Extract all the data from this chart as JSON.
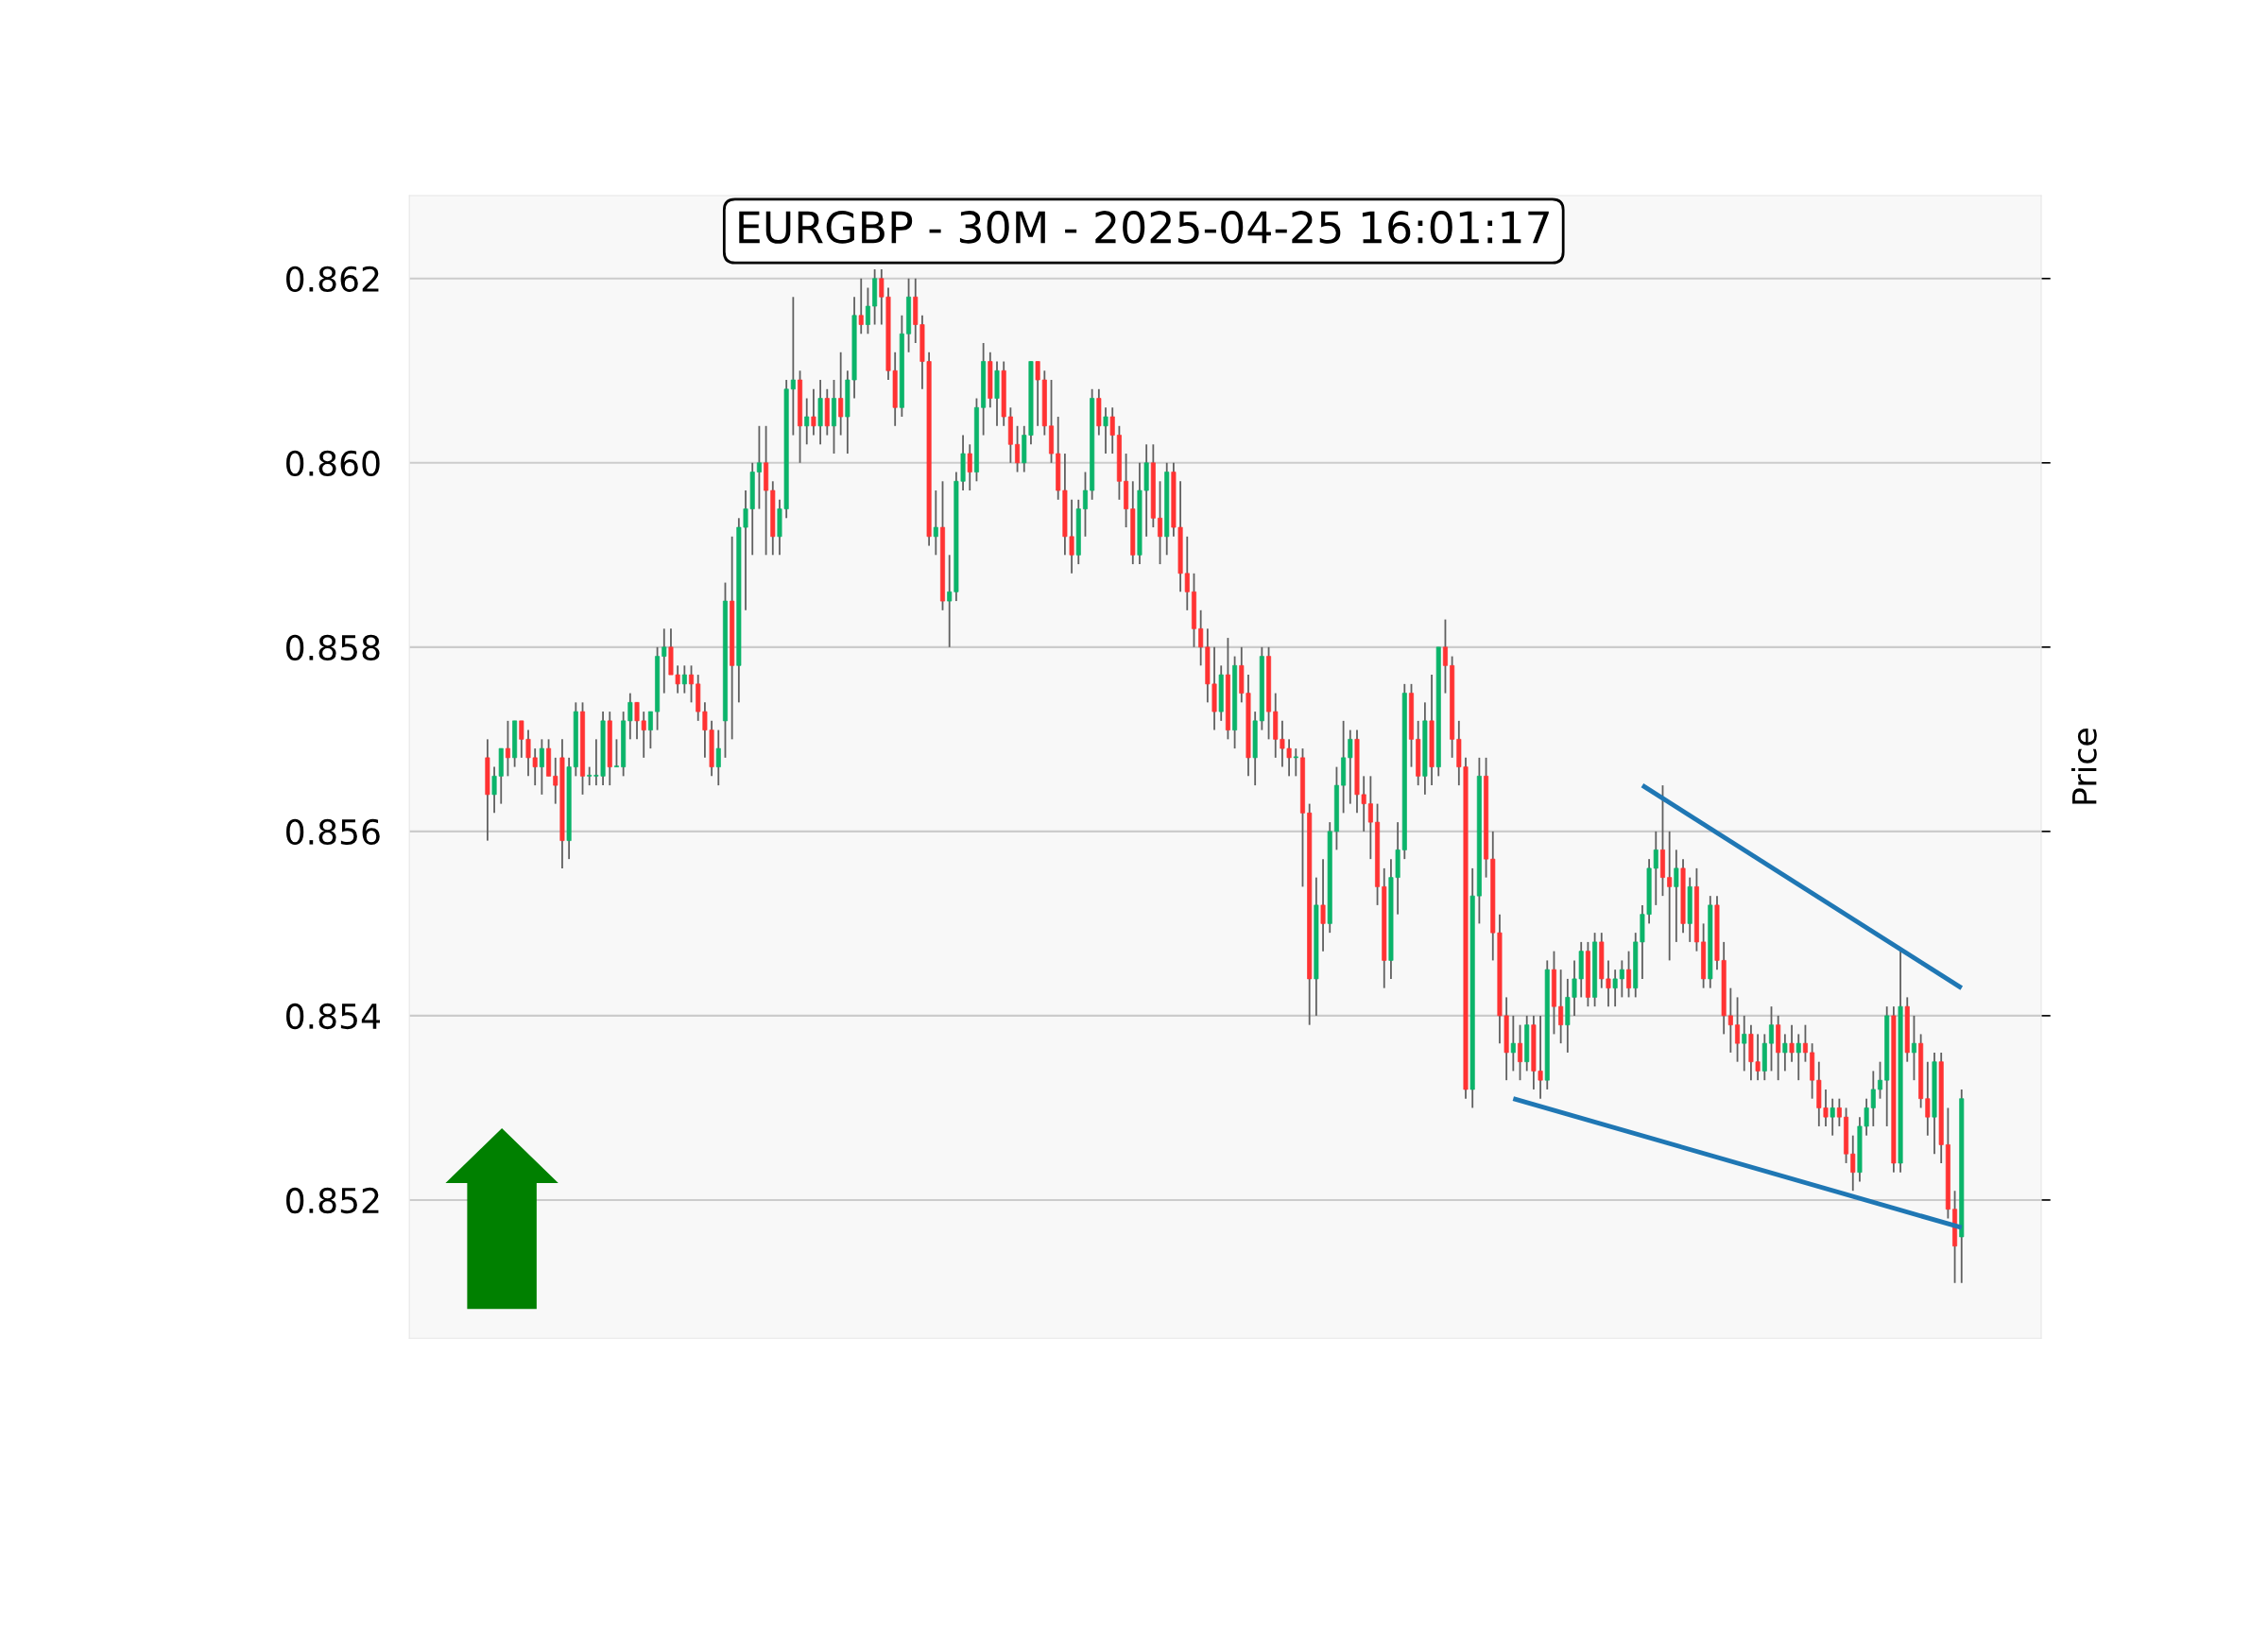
{
  "chart_data": {
    "type": "candlestick",
    "title": "EURGBP - 30M - 2025-04-25 16:01:17",
    "ylabel": "Price",
    "categories": [
      null,
      null,
      null,
      null,
      null,
      null,
      null,
      null,
      null,
      null,
      null,
      null,
      null,
      null,
      null,
      null,
      null,
      null,
      null,
      null,
      null,
      null,
      null,
      null,
      null,
      null,
      null,
      null,
      null,
      null,
      null,
      null,
      null,
      null,
      null,
      null,
      null,
      null,
      null,
      null,
      null,
      null,
      null,
      null,
      null,
      null,
      null,
      null,
      null,
      null,
      null,
      null,
      null,
      null,
      null,
      null,
      null,
      null,
      null,
      null,
      null,
      null,
      null,
      null,
      null,
      null,
      null,
      null,
      null,
      null,
      null,
      null,
      null,
      null,
      null,
      null,
      null,
      null,
      null,
      null,
      null,
      null,
      null,
      null,
      null,
      null,
      null,
      null,
      null,
      null,
      null,
      null,
      null,
      null,
      null,
      null,
      null,
      null,
      null,
      null,
      null,
      null,
      null,
      null,
      null,
      null,
      null,
      null,
      null,
      null,
      null,
      null,
      null,
      null,
      null,
      null,
      null,
      null,
      null,
      null,
      null,
      null,
      null,
      null,
      null,
      null,
      null,
      null,
      null,
      null,
      null,
      null,
      null,
      null,
      null,
      null,
      null,
      null,
      null,
      null,
      null,
      null,
      null,
      null,
      null,
      null,
      null,
      null,
      null,
      null,
      null,
      null,
      null,
      null,
      null,
      null,
      null,
      null,
      null,
      null,
      null,
      null,
      null,
      null,
      null,
      null,
      null,
      null,
      null,
      null,
      null,
      null,
      null,
      null,
      null,
      null,
      null,
      null,
      null,
      null,
      null,
      null,
      null,
      null,
      null,
      null,
      null,
      null,
      null,
      null,
      null,
      null,
      null,
      null,
      null,
      null,
      null,
      null,
      null,
      null,
      null,
      null,
      null,
      null,
      null,
      null,
      null,
      null,
      null,
      null,
      null,
      null,
      null,
      null,
      null,
      null,
      null,
      null
    ],
    "ohlc": [
      [
        0.8568,
        0.857,
        0.8559,
        0.8564
      ],
      [
        0.8564,
        0.8567,
        0.8562,
        0.8566
      ],
      [
        0.8566,
        0.8569,
        0.8563,
        0.8569
      ],
      [
        0.8569,
        0.8572,
        0.8566,
        0.8568
      ],
      [
        0.8568,
        0.8572,
        0.8567,
        0.8572
      ],
      [
        0.8572,
        0.8572,
        0.8568,
        0.857
      ],
      [
        0.857,
        0.8571,
        0.8566,
        0.8568
      ],
      [
        0.8568,
        0.8569,
        0.8565,
        0.8567
      ],
      [
        0.8567,
        0.857,
        0.8564,
        0.8569
      ],
      [
        0.8569,
        0.857,
        0.8566,
        0.8566
      ],
      [
        0.8566,
        0.8568,
        0.8563,
        0.8565
      ],
      [
        0.8568,
        0.857,
        0.8556,
        0.8559
      ],
      [
        0.8559,
        0.8568,
        0.8557,
        0.8567
      ],
      [
        0.8567,
        0.8574,
        0.8566,
        0.8573
      ],
      [
        0.8573,
        0.8574,
        0.8564,
        0.8566
      ],
      [
        0.8566,
        0.8567,
        0.8565,
        0.8566
      ],
      [
        0.8566,
        0.857,
        0.8565,
        0.8566
      ],
      [
        0.8566,
        0.8573,
        0.8565,
        0.8572
      ],
      [
        0.8572,
        0.8573,
        0.8565,
        0.8567
      ],
      [
        0.8567,
        0.857,
        0.8567,
        0.8567
      ],
      [
        0.8567,
        0.8573,
        0.8566,
        0.8572
      ],
      [
        0.8572,
        0.8575,
        0.857,
        0.8574
      ],
      [
        0.8574,
        0.8574,
        0.857,
        0.8572
      ],
      [
        0.8572,
        0.8573,
        0.8568,
        0.8571
      ],
      [
        0.8571,
        0.8573,
        0.8569,
        0.8573
      ],
      [
        0.8573,
        0.858,
        0.8571,
        0.8579
      ],
      [
        0.8579,
        0.8582,
        0.8575,
        0.858
      ],
      [
        0.858,
        0.8582,
        0.8577,
        0.8577
      ],
      [
        0.8577,
        0.8578,
        0.8575,
        0.8576
      ],
      [
        0.8576,
        0.8578,
        0.8575,
        0.8577
      ],
      [
        0.8577,
        0.8578,
        0.8574,
        0.8576
      ],
      [
        0.8576,
        0.8577,
        0.8572,
        0.8573
      ],
      [
        0.8573,
        0.8574,
        0.8568,
        0.8571
      ],
      [
        0.8571,
        0.8572,
        0.8566,
        0.8567
      ],
      [
        0.8567,
        0.8571,
        0.8565,
        0.8569
      ],
      [
        0.8572,
        0.8587,
        0.8568,
        0.8585
      ],
      [
        0.8585,
        0.8592,
        0.857,
        0.8578
      ],
      [
        0.8578,
        0.8594,
        0.8574,
        0.8593
      ],
      [
        0.8593,
        0.8597,
        0.8584,
        0.8595
      ],
      [
        0.8595,
        0.86,
        0.859,
        0.8599
      ],
      [
        0.8599,
        0.8604,
        0.8595,
        0.86
      ],
      [
        0.86,
        0.8604,
        0.859,
        0.8597
      ],
      [
        0.8597,
        0.8598,
        0.859,
        0.8592
      ],
      [
        0.8592,
        0.8596,
        0.859,
        0.8595
      ],
      [
        0.8595,
        0.8609,
        0.8594,
        0.8608
      ],
      [
        0.8608,
        0.8618,
        0.8603,
        0.8609
      ],
      [
        0.8609,
        0.861,
        0.86,
        0.8604
      ],
      [
        0.8604,
        0.8607,
        0.8602,
        0.8605
      ],
      [
        0.8605,
        0.8608,
        0.8603,
        0.8604
      ],
      [
        0.8604,
        0.8609,
        0.8602,
        0.8607
      ],
      [
        0.8607,
        0.8608,
        0.8603,
        0.8604
      ],
      [
        0.8604,
        0.8609,
        0.8601,
        0.8607
      ],
      [
        0.8607,
        0.8612,
        0.8603,
        0.8605
      ],
      [
        0.8605,
        0.861,
        0.8601,
        0.8609
      ],
      [
        0.8609,
        0.8618,
        0.8607,
        0.8616
      ],
      [
        0.8616,
        0.862,
        0.8614,
        0.8615
      ],
      [
        0.8615,
        0.8619,
        0.8614,
        0.8617
      ],
      [
        0.8617,
        0.8621,
        0.8615,
        0.862
      ],
      [
        0.862,
        0.8621,
        0.8615,
        0.8618
      ],
      [
        0.8618,
        0.8619,
        0.8609,
        0.861
      ],
      [
        0.861,
        0.8612,
        0.8604,
        0.8606
      ],
      [
        0.8606,
        0.8616,
        0.8605,
        0.8614
      ],
      [
        0.8614,
        0.862,
        0.8612,
        0.8618
      ],
      [
        0.8618,
        0.862,
        0.8613,
        0.8615
      ],
      [
        0.8615,
        0.8616,
        0.8608,
        0.8611
      ],
      [
        0.8611,
        0.8612,
        0.8591,
        0.8592
      ],
      [
        0.8592,
        0.8597,
        0.859,
        0.8593
      ],
      [
        0.8593,
        0.8598,
        0.8584,
        0.8585
      ],
      [
        0.8585,
        0.859,
        0.858,
        0.8586
      ],
      [
        0.8586,
        0.8599,
        0.8585,
        0.8598
      ],
      [
        0.8598,
        0.8603,
        0.8597,
        0.8601
      ],
      [
        0.8601,
        0.8602,
        0.8597,
        0.8599
      ],
      [
        0.8599,
        0.8607,
        0.8598,
        0.8606
      ],
      [
        0.8606,
        0.8613,
        0.8603,
        0.8611
      ],
      [
        0.8611,
        0.8612,
        0.8606,
        0.8607
      ],
      [
        0.8607,
        0.8611,
        0.8604,
        0.861
      ],
      [
        0.861,
        0.8611,
        0.8604,
        0.8605
      ],
      [
        0.8605,
        0.8606,
        0.86,
        0.8602
      ],
      [
        0.8602,
        0.8604,
        0.8599,
        0.86
      ],
      [
        0.86,
        0.8604,
        0.8599,
        0.8603
      ],
      [
        0.8603,
        0.8611,
        0.8602,
        0.8611
      ],
      [
        0.8611,
        0.8611,
        0.8604,
        0.8609
      ],
      [
        0.8609,
        0.861,
        0.8603,
        0.8604
      ],
      [
        0.8604,
        0.8609,
        0.86,
        0.8601
      ],
      [
        0.8601,
        0.8605,
        0.8596,
        0.8597
      ],
      [
        0.8597,
        0.8601,
        0.859,
        0.8592
      ],
      [
        0.8592,
        0.8596,
        0.8588,
        0.859
      ],
      [
        0.859,
        0.8596,
        0.8589,
        0.8595
      ],
      [
        0.8595,
        0.8599,
        0.8592,
        0.8597
      ],
      [
        0.8597,
        0.8608,
        0.8596,
        0.8607
      ],
      [
        0.8607,
        0.8608,
        0.8603,
        0.8604
      ],
      [
        0.8604,
        0.8606,
        0.8601,
        0.8605
      ],
      [
        0.8605,
        0.8606,
        0.8601,
        0.8603
      ],
      [
        0.8603,
        0.8604,
        0.8596,
        0.8598
      ],
      [
        0.8598,
        0.8601,
        0.8593,
        0.8595
      ],
      [
        0.8595,
        0.8598,
        0.8589,
        0.859
      ],
      [
        0.859,
        0.86,
        0.8589,
        0.8597
      ],
      [
        0.8597,
        0.8602,
        0.8592,
        0.86
      ],
      [
        0.86,
        0.8602,
        0.8593,
        0.8594
      ],
      [
        0.8594,
        0.8598,
        0.8589,
        0.8592
      ],
      [
        0.8592,
        0.86,
        0.859,
        0.8599
      ],
      [
        0.8599,
        0.86,
        0.8592,
        0.8593
      ],
      [
        0.8593,
        0.8598,
        0.8586,
        0.8588
      ],
      [
        0.8588,
        0.8592,
        0.8584,
        0.8586
      ],
      [
        0.8586,
        0.8588,
        0.858,
        0.8582
      ],
      [
        0.8582,
        0.8584,
        0.8578,
        0.858
      ],
      [
        0.858,
        0.8582,
        0.8574,
        0.8576
      ],
      [
        0.8576,
        0.858,
        0.8571,
        0.8573
      ],
      [
        0.8573,
        0.8578,
        0.8572,
        0.8577
      ],
      [
        0.8577,
        0.8581,
        0.857,
        0.8571
      ],
      [
        0.8571,
        0.8579,
        0.8569,
        0.8578
      ],
      [
        0.8578,
        0.858,
        0.8574,
        0.8575
      ],
      [
        0.8575,
        0.8577,
        0.8566,
        0.8568
      ],
      [
        0.8568,
        0.8573,
        0.8565,
        0.8572
      ],
      [
        0.8572,
        0.858,
        0.8571,
        0.8579
      ],
      [
        0.8579,
        0.858,
        0.857,
        0.8573
      ],
      [
        0.8573,
        0.8575,
        0.8568,
        0.857
      ],
      [
        0.857,
        0.8572,
        0.8567,
        0.8569
      ],
      [
        0.8569,
        0.857,
        0.8566,
        0.8568
      ],
      [
        0.8568,
        0.8569,
        0.8566,
        0.8568
      ],
      [
        0.8568,
        0.8569,
        0.8554,
        0.8562
      ],
      [
        0.8562,
        0.8563,
        0.8539,
        0.8544
      ],
      [
        0.8544,
        0.8555,
        0.854,
        0.8552
      ],
      [
        0.8552,
        0.8557,
        0.8547,
        0.855
      ],
      [
        0.855,
        0.8561,
        0.8549,
        0.856
      ],
      [
        0.856,
        0.8567,
        0.8558,
        0.8565
      ],
      [
        0.8565,
        0.8572,
        0.8562,
        0.8568
      ],
      [
        0.8568,
        0.8571,
        0.8563,
        0.857
      ],
      [
        0.857,
        0.8571,
        0.8562,
        0.8564
      ],
      [
        0.8564,
        0.8566,
        0.856,
        0.8563
      ],
      [
        0.8563,
        0.8566,
        0.8557,
        0.8561
      ],
      [
        0.8561,
        0.8563,
        0.8552,
        0.8554
      ],
      [
        0.8554,
        0.8556,
        0.8543,
        0.8546
      ],
      [
        0.8546,
        0.8557,
        0.8544,
        0.8555
      ],
      [
        0.8555,
        0.8561,
        0.8551,
        0.8558
      ],
      [
        0.8558,
        0.8576,
        0.8557,
        0.8575
      ],
      [
        0.8575,
        0.8576,
        0.8567,
        0.857
      ],
      [
        0.857,
        0.8572,
        0.8565,
        0.8566
      ],
      [
        0.8566,
        0.8574,
        0.8564,
        0.8572
      ],
      [
        0.8572,
        0.8577,
        0.8565,
        0.8567
      ],
      [
        0.8567,
        0.858,
        0.8566,
        0.858
      ],
      [
        0.858,
        0.8583,
        0.8575,
        0.8578
      ],
      [
        0.8578,
        0.8579,
        0.8568,
        0.857
      ],
      [
        0.857,
        0.8572,
        0.8565,
        0.8567
      ],
      [
        0.8567,
        0.8568,
        0.8531,
        0.8532
      ],
      [
        0.8532,
        0.8556,
        0.853,
        0.8553
      ],
      [
        0.8553,
        0.8568,
        0.855,
        0.8566
      ],
      [
        0.8566,
        0.8568,
        0.8555,
        0.8557
      ],
      [
        0.8557,
        0.856,
        0.8546,
        0.8549
      ],
      [
        0.8549,
        0.8551,
        0.8537,
        0.854
      ],
      [
        0.854,
        0.8542,
        0.8533,
        0.8536
      ],
      [
        0.8536,
        0.854,
        0.8534,
        0.8537
      ],
      [
        0.8537,
        0.8539,
        0.8533,
        0.8535
      ],
      [
        0.8535,
        0.854,
        0.8534,
        0.8539
      ],
      [
        0.8539,
        0.854,
        0.8532,
        0.8534
      ],
      [
        0.8534,
        0.854,
        0.8531,
        0.8533
      ],
      [
        0.8533,
        0.8546,
        0.8532,
        0.8545
      ],
      [
        0.8545,
        0.8547,
        0.8538,
        0.8541
      ],
      [
        0.8541,
        0.8545,
        0.8537,
        0.8539
      ],
      [
        0.8539,
        0.8544,
        0.8536,
        0.8542
      ],
      [
        0.8542,
        0.8546,
        0.854,
        0.8544
      ],
      [
        0.8544,
        0.8548,
        0.8542,
        0.8547
      ],
      [
        0.8547,
        0.8548,
        0.8541,
        0.8542
      ],
      [
        0.8542,
        0.8549,
        0.8541,
        0.8548
      ],
      [
        0.8548,
        0.8549,
        0.8543,
        0.8544
      ],
      [
        0.8544,
        0.8546,
        0.8541,
        0.8543
      ],
      [
        0.8543,
        0.8545,
        0.8541,
        0.8544
      ],
      [
        0.8544,
        0.8546,
        0.8542,
        0.8545
      ],
      [
        0.8545,
        0.8547,
        0.8542,
        0.8543
      ],
      [
        0.8543,
        0.8549,
        0.8542,
        0.8548
      ],
      [
        0.8548,
        0.8552,
        0.8544,
        0.8551
      ],
      [
        0.8551,
        0.8557,
        0.855,
        0.8556
      ],
      [
        0.8556,
        0.856,
        0.8552,
        0.8558
      ],
      [
        0.8558,
        0.8565,
        0.8553,
        0.8555
      ],
      [
        0.8555,
        0.856,
        0.8546,
        0.8554
      ],
      [
        0.8554,
        0.8558,
        0.8548,
        0.8556
      ],
      [
        0.8556,
        0.8557,
        0.8549,
        0.855
      ],
      [
        0.855,
        0.8555,
        0.8548,
        0.8554
      ],
      [
        0.8554,
        0.8556,
        0.8547,
        0.8548
      ],
      [
        0.8548,
        0.855,
        0.8543,
        0.8544
      ],
      [
        0.8544,
        0.8553,
        0.8543,
        0.8552
      ],
      [
        0.8552,
        0.8553,
        0.8545,
        0.8546
      ],
      [
        0.8546,
        0.8548,
        0.8538,
        0.854
      ],
      [
        0.854,
        0.8543,
        0.8536,
        0.8539
      ],
      [
        0.8539,
        0.8542,
        0.8535,
        0.8537
      ],
      [
        0.8537,
        0.854,
        0.8534,
        0.8538
      ],
      [
        0.8538,
        0.8539,
        0.8533,
        0.8535
      ],
      [
        0.8535,
        0.8538,
        0.8533,
        0.8534
      ],
      [
        0.8534,
        0.8538,
        0.8533,
        0.8537
      ],
      [
        0.8537,
        0.8541,
        0.8534,
        0.8539
      ],
      [
        0.8539,
        0.854,
        0.8533,
        0.8536
      ],
      [
        0.8536,
        0.8538,
        0.8534,
        0.8537
      ],
      [
        0.8537,
        0.8539,
        0.8535,
        0.8536
      ],
      [
        0.8536,
        0.8538,
        0.8533,
        0.8537
      ],
      [
        0.8537,
        0.8539,
        0.8535,
        0.8536
      ],
      [
        0.8536,
        0.8537,
        0.8531,
        0.8533
      ],
      [
        0.8533,
        0.8535,
        0.8528,
        0.853
      ],
      [
        0.853,
        0.8532,
        0.8528,
        0.8529
      ],
      [
        0.8529,
        0.8531,
        0.8527,
        0.853
      ],
      [
        0.853,
        0.8531,
        0.8528,
        0.8529
      ],
      [
        0.8529,
        0.853,
        0.8524,
        0.8525
      ],
      [
        0.8525,
        0.8527,
        0.8521,
        0.8523
      ],
      [
        0.8523,
        0.8529,
        0.8522,
        0.8528
      ],
      [
        0.8528,
        0.8531,
        0.8527,
        0.853
      ],
      [
        0.853,
        0.8534,
        0.8528,
        0.8532
      ],
      [
        0.8532,
        0.8535,
        0.8531,
        0.8533
      ],
      [
        0.8533,
        0.8541,
        0.8528,
        0.854
      ],
      [
        0.854,
        0.8541,
        0.8523,
        0.8524
      ],
      [
        0.8524,
        0.8547,
        0.8523,
        0.8541
      ],
      [
        0.8541,
        0.8542,
        0.8535,
        0.8536
      ],
      [
        0.8536,
        0.854,
        0.8533,
        0.8537
      ],
      [
        0.8537,
        0.8538,
        0.853,
        0.8531
      ],
      [
        0.8531,
        0.8535,
        0.8527,
        0.8529
      ],
      [
        0.8529,
        0.8536,
        0.8525,
        0.8535
      ],
      [
        0.8535,
        0.8536,
        0.8524,
        0.8526
      ],
      [
        0.8526,
        0.853,
        0.8518,
        0.8519
      ],
      [
        0.8519,
        0.8521,
        0.8511,
        0.8515
      ],
      [
        0.8516,
        0.8532,
        0.8511,
        0.8531
      ]
    ],
    "series": [
      {
        "type": "line",
        "color": "#1f77b4",
        "values": [
          null,
          null,
          null,
          null,
          null,
          null,
          null,
          null,
          null,
          null,
          null,
          null,
          null,
          null,
          null,
          null,
          null,
          null,
          null,
          null,
          null,
          null,
          null,
          null,
          null,
          null,
          null,
          null,
          null,
          null,
          null,
          null,
          null,
          null,
          null,
          null,
          null,
          null,
          null,
          null,
          null,
          null,
          null,
          null,
          null,
          null,
          null,
          null,
          null,
          null,
          null,
          null,
          null,
          null,
          null,
          null,
          null,
          null,
          null,
          null,
          null,
          null,
          null,
          null,
          null,
          null,
          null,
          null,
          null,
          null,
          null,
          null,
          null,
          null,
          null,
          null,
          null,
          null,
          null,
          null,
          null,
          null,
          null,
          null,
          null,
          null,
          null,
          null,
          null,
          null,
          null,
          null,
          null,
          null,
          null,
          null,
          null,
          null,
          null,
          null,
          null,
          null,
          null,
          null,
          null,
          null,
          null,
          null,
          null,
          null,
          null,
          null,
          null,
          null,
          null,
          null,
          null,
          null,
          null,
          null,
          null,
          null,
          null,
          null,
          null,
          null,
          null,
          null,
          null,
          null,
          null,
          null,
          null,
          null,
          null,
          null,
          null,
          null,
          null,
          null,
          null,
          null,
          null,
          null,
          null,
          null,
          null,
          null,
          null,
          null,
          null,
          null,
          null,
          null,
          null,
          null,
          null,
          null,
          null,
          null,
          null,
          null,
          null,
          null,
          null,
          null,
          null,
          null,
          null,
          null,
          0.8565,
          null,
          null,
          null,
          null,
          null,
          null,
          null,
          null,
          null,
          null,
          null,
          null,
          null,
          null,
          null,
          null,
          null,
          null,
          null,
          null,
          null,
          null,
          null,
          null,
          null,
          null,
          null,
          null,
          null,
          null,
          null,
          null,
          null,
          null,
          null,
          null,
          null,
          null,
          null,
          null,
          null,
          null,
          null,
          null,
          null,
          null,
          0.8543
        ]
      },
      {
        "type": "line",
        "color": "#1f77b4",
        "values": [
          null,
          null,
          null,
          null,
          null,
          null,
          null,
          null,
          null,
          null,
          null,
          null,
          null,
          null,
          null,
          null,
          null,
          null,
          null,
          null,
          null,
          null,
          null,
          null,
          null,
          null,
          null,
          null,
          null,
          null,
          null,
          null,
          null,
          null,
          null,
          null,
          null,
          null,
          null,
          null,
          null,
          null,
          null,
          null,
          null,
          null,
          null,
          null,
          null,
          null,
          null,
          null,
          null,
          null,
          null,
          null,
          null,
          null,
          null,
          null,
          null,
          null,
          null,
          null,
          null,
          null,
          null,
          null,
          null,
          null,
          null,
          null,
          null,
          null,
          null,
          null,
          null,
          null,
          null,
          null,
          null,
          null,
          null,
          null,
          null,
          null,
          null,
          null,
          null,
          null,
          null,
          null,
          null,
          null,
          null,
          null,
          null,
          null,
          null,
          null,
          null,
          null,
          null,
          null,
          null,
          null,
          null,
          null,
          null,
          null,
          null,
          null,
          null,
          null,
          null,
          null,
          null,
          null,
          null,
          null,
          null,
          null,
          null,
          null,
          null,
          null,
          null,
          null,
          null,
          null,
          null,
          null,
          null,
          null,
          null,
          null,
          null,
          null,
          null,
          null,
          null,
          null,
          null,
          null,
          null,
          null,
          null,
          null,
          null,
          null,
          null,
          0.8531,
          null,
          null,
          null,
          null,
          null,
          null,
          null,
          null,
          null,
          null,
          null,
          null,
          null,
          null,
          null,
          null,
          null,
          null,
          null,
          null,
          null,
          null,
          null,
          null,
          null,
          null,
          null,
          null,
          null,
          null,
          null,
          null,
          null,
          null,
          null,
          null,
          null,
          null,
          null,
          null,
          null,
          null,
          null,
          null,
          null,
          null,
          null,
          null,
          null,
          null,
          null,
          null,
          null,
          null,
          null,
          null,
          null,
          null,
          null,
          null,
          null,
          null,
          null,
          null,
          null,
          0.8517
        ]
      }
    ],
    "ylim": [
      0.8505,
      0.8629
    ],
    "yticks": [
      0.852,
      0.854,
      0.856,
      0.858,
      {
        "value": 0.86,
        "label": "0.860"
      },
      0.862
    ],
    "grid": "y",
    "tick_labels": "y"
  }
}
